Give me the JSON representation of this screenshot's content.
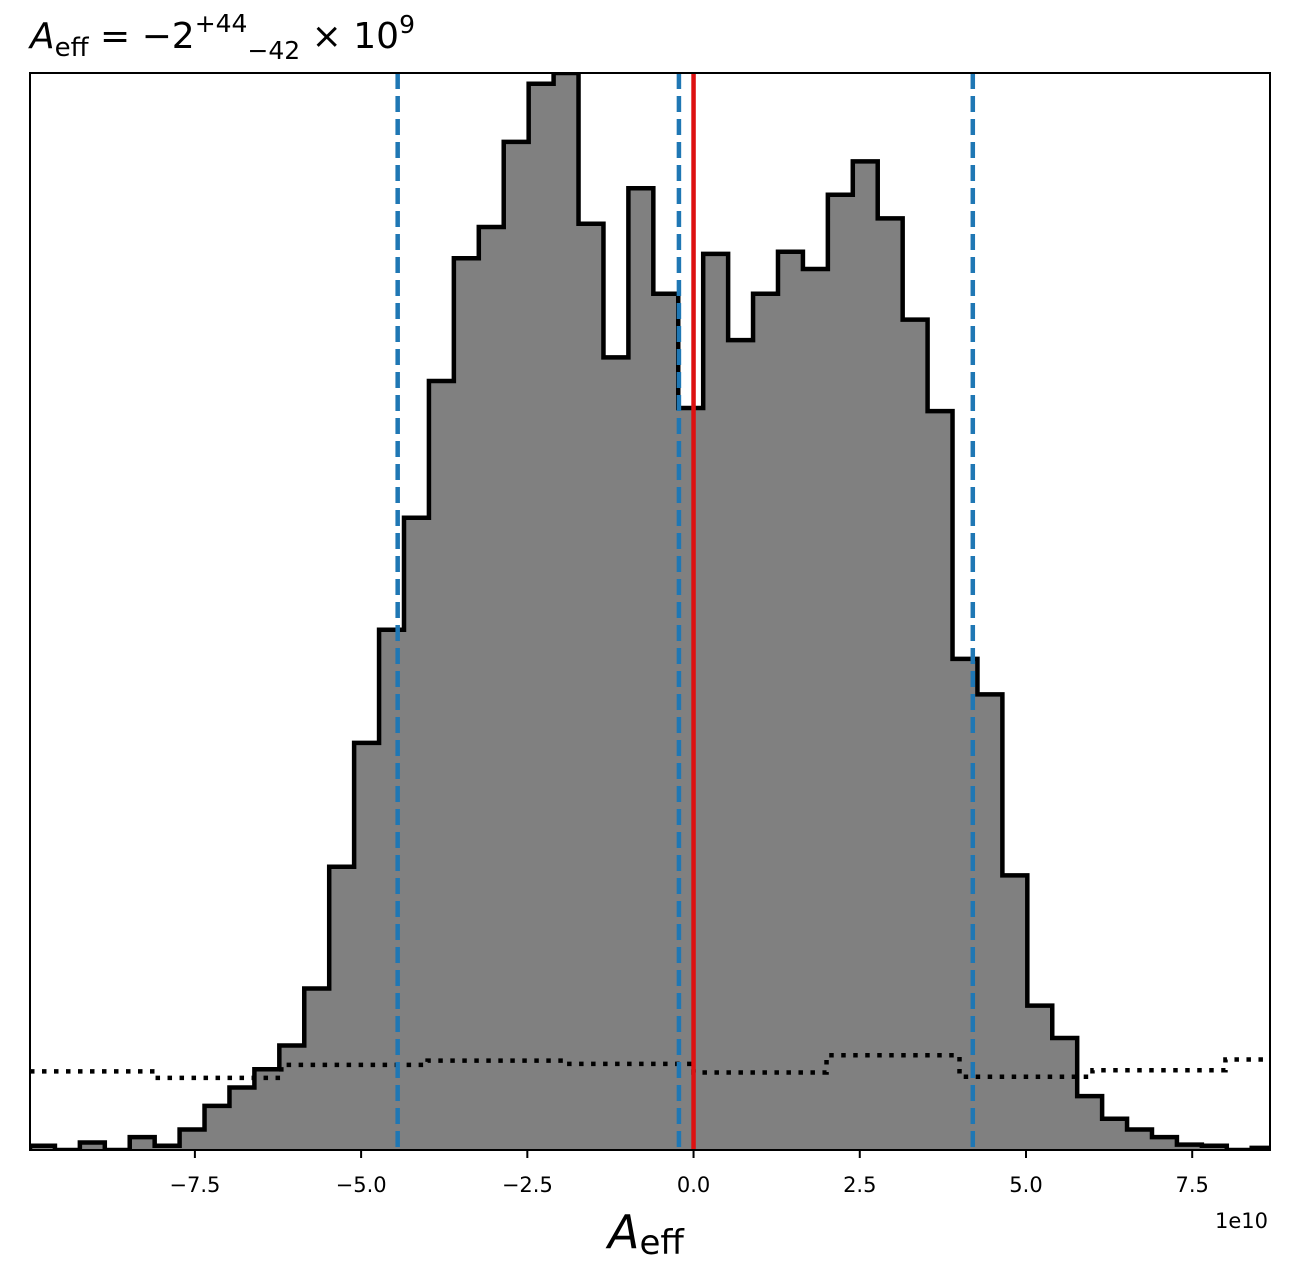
{
  "chart_data": {
    "type": "histogram",
    "title": {
      "base": "A",
      "base_sub": "eff",
      "eq": " = −2",
      "sup": "+44",
      "sub": "−42",
      "times": " × 10",
      "exp": "9"
    },
    "xlabel": {
      "base": "A",
      "sub": "eff"
    },
    "offset_text": "1e10",
    "xlim": [
      -99800000000.0,
      86700000000.0
    ],
    "ylim": [
      0,
      1.0
    ],
    "x_ticks": [
      -75000000000.0,
      -50000000000.0,
      -25000000000.0,
      0.0,
      25000000000.0,
      50000000000.0,
      75000000000.0
    ],
    "x_tick_labels": [
      "−7.5",
      "−5.0",
      "−2.5",
      "0.0",
      "2.5",
      "5.0",
      "7.5"
    ],
    "grid": false,
    "histogram": {
      "bin_edges": [
        -99800000000.0,
        -96050000000.0,
        -92300000000.0,
        -88550000000.0,
        -84800000000.0,
        -81050000000.0,
        -77300000000.0,
        -73550000000.0,
        -69800000000.0,
        -66050000000.0,
        -62300000000.0,
        -58550000000.0,
        -54800000000.0,
        -51050000000.0,
        -47300000000.0,
        -43550000000.0,
        -39800000000.0,
        -36050000000.0,
        -32300000000.0,
        -28550000000.0,
        -24800000000.0,
        -21050000000.0,
        -17300000000.0,
        -13550000000.0,
        -9800000000.0,
        -6050000000.0,
        -2300000000.0,
        1450000000.0,
        5200000000.0,
        8950000000.0,
        12700000000.0,
        16450000000.0,
        20200000000.0,
        23950000000.0,
        27700000000.0,
        31450000000.0,
        35200000000.0,
        38950000000.0,
        42700000000.0,
        46450000000.0,
        50200000000.0,
        53950000000.0,
        57700000000.0,
        61450000000.0,
        65200000000.0,
        68950000000.0,
        72700000000.0,
        76450000000.0,
        80200000000.0,
        83950000000.0,
        86700000000.0
      ],
      "heights": [
        0.004,
        0.0,
        0.007,
        0.0,
        0.012,
        0.004,
        0.019,
        0.041,
        0.058,
        0.075,
        0.097,
        0.15,
        0.263,
        0.378,
        0.483,
        0.587,
        0.714,
        0.828,
        0.857,
        0.936,
        0.99,
        1.0,
        0.86,
        0.736,
        0.893,
        0.795,
        0.689,
        0.832,
        0.752,
        0.795,
        0.834,
        0.818,
        0.887,
        0.918,
        0.865,
        0.771,
        0.686,
        0.456,
        0.423,
        0.255,
        0.134,
        0.104,
        0.05,
        0.029,
        0.019,
        0.012,
        0.005,
        0.004,
        0.0,
        0.002
      ],
      "fill": "#808080",
      "edge": "#000000"
    },
    "prior": {
      "style": "dotted",
      "color": "#000000",
      "x": [
        -99800000000.0,
        -81000000000.0,
        -81000000000.0,
        -62000000000.0,
        -62000000000.0,
        -40000000000.0,
        -40000000000.0,
        -20000000000.0,
        -20000000000.0,
        0.0,
        0.0,
        20000000000.0,
        20000000000.0,
        40000000000.0,
        40000000000.0,
        60000000000.0,
        60000000000.0,
        80000000000.0,
        80000000000.0,
        86700000000.0
      ],
      "y": [
        0.073,
        0.073,
        0.067,
        0.067,
        0.079,
        0.079,
        0.083,
        0.083,
        0.08,
        0.08,
        0.072,
        0.072,
        0.088,
        0.088,
        0.068,
        0.068,
        0.074,
        0.074,
        0.084,
        0.084
      ]
    },
    "vlines": [
      {
        "x": -44500000000.0,
        "color": "#1f77b4",
        "style": "dashed"
      },
      {
        "x": -2200000000.0,
        "color": "#1f77b4",
        "style": "dashed"
      },
      {
        "x": 42000000000.0,
        "color": "#1f77b4",
        "style": "dashed"
      },
      {
        "x": 0.0,
        "color": "#dd1111",
        "style": "solid"
      }
    ]
  }
}
